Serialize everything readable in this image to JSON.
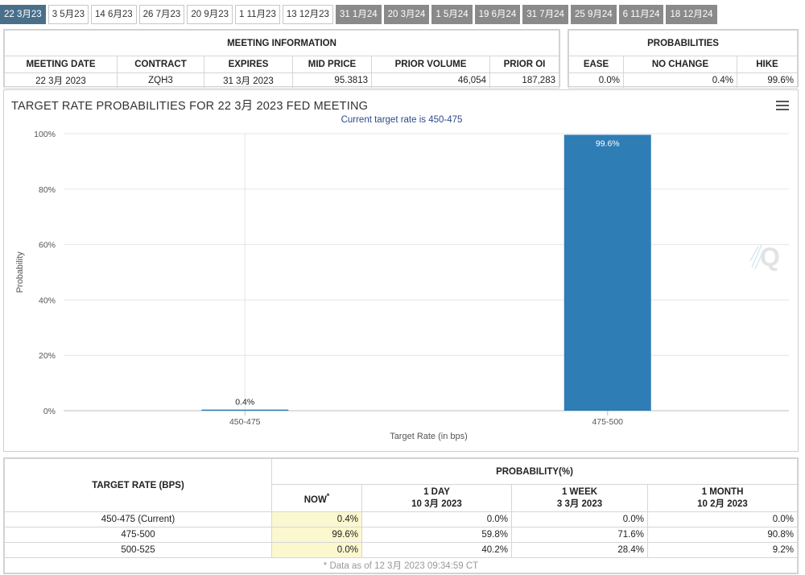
{
  "tabs": [
    "22 3月23",
    "3 5月23",
    "14 6月23",
    "26 7月23",
    "20 9月23",
    "1 11月23",
    "13 12月23",
    "31 1月24",
    "20 3月24",
    "1 5月24",
    "19 6月24",
    "31 7月24",
    "25 9月24",
    "6 11月24",
    "18 12月24"
  ],
  "tab_states": [
    "active",
    "normal",
    "normal",
    "normal",
    "normal",
    "normal",
    "normal",
    "future",
    "future",
    "future",
    "future",
    "future",
    "future",
    "future",
    "future"
  ],
  "meeting": {
    "title": "MEETING INFORMATION",
    "headers": [
      "MEETING DATE",
      "CONTRACT",
      "EXPIRES",
      "MID PRICE",
      "PRIOR VOLUME",
      "PRIOR OI"
    ],
    "values": [
      "22 3月 2023",
      "ZQH3",
      "31 3月 2023",
      "95.3813",
      "46,054",
      "187,283"
    ]
  },
  "probabilities": {
    "title": "PROBABILITIES",
    "headers": [
      "EASE",
      "NO CHANGE",
      "HIKE"
    ],
    "values": [
      "0.0%",
      "0.4%",
      "99.6%"
    ]
  },
  "chart_data": {
    "type": "bar",
    "title": "TARGET RATE PROBABILITIES FOR 22 3月 2023 FED MEETING",
    "subtitle": "Current target rate is 450-475",
    "categories": [
      "450-475",
      "475-500"
    ],
    "values": [
      0.4,
      99.6
    ],
    "data_labels": [
      "0.4%",
      "99.6%"
    ],
    "xlabel": "Target Rate (in bps)",
    "ylabel": "Probability",
    "ylim": [
      0,
      100
    ],
    "yticks": [
      "0%",
      "20%",
      "40%",
      "60%",
      "80%",
      "100%"
    ],
    "bar_color": "#2e7db5",
    "grid": true,
    "legend": "none"
  },
  "bottom": {
    "rate_header": "TARGET RATE (BPS)",
    "prob_header": "PROBABILITY(%)",
    "col_now": "NOW",
    "col_now_mark": "*",
    "cols": [
      {
        "line1": "1 DAY",
        "line2": "10 3月 2023"
      },
      {
        "line1": "1 WEEK",
        "line2": "3 3月 2023"
      },
      {
        "line1": "1 MONTH",
        "line2": "10 2月 2023"
      }
    ],
    "rows": [
      {
        "rate": "450-475 (Current)",
        "now": "0.4%",
        "vals": [
          "0.0%",
          "0.0%",
          "0.0%"
        ]
      },
      {
        "rate": "475-500",
        "now": "99.6%",
        "vals": [
          "59.8%",
          "71.6%",
          "90.8%"
        ]
      },
      {
        "rate": "500-525",
        "now": "0.0%",
        "vals": [
          "40.2%",
          "28.4%",
          "9.2%"
        ]
      }
    ],
    "footnote": "* Data as of 12 3月 2023 09:34:59 CT"
  }
}
